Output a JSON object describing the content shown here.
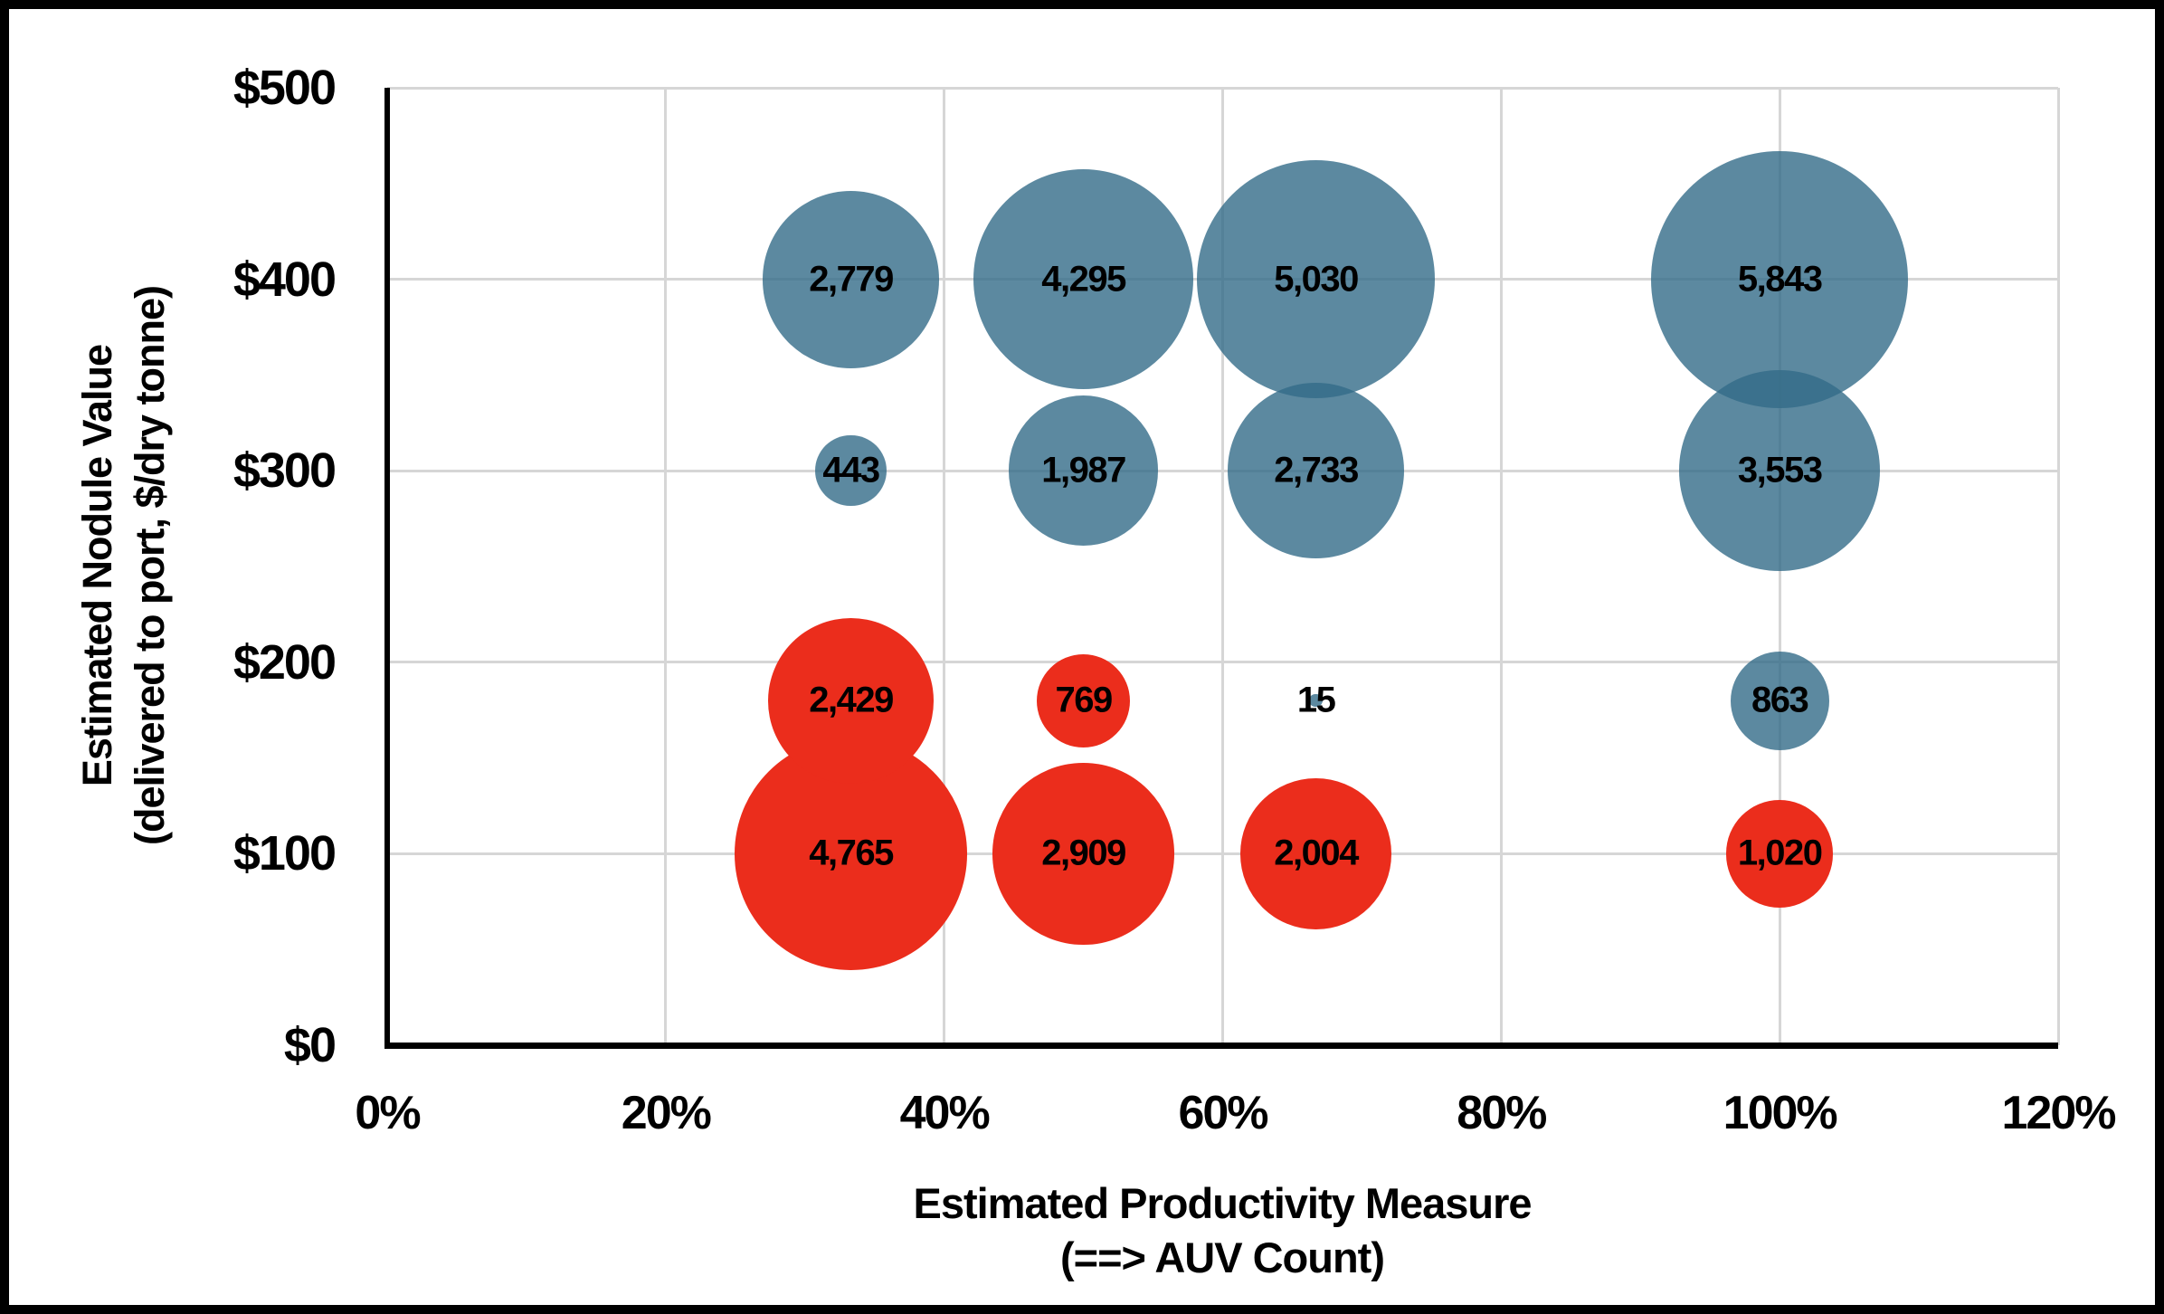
{
  "chart_data": {
    "type": "bubble",
    "title": "",
    "x_axis": {
      "title_line1": "Estimated Productivity Measure",
      "title_line2": "(==> AUV Count)",
      "min": 0,
      "max": 120,
      "unit": "%",
      "ticks": [
        {
          "label": "0%",
          "value": 0
        },
        {
          "label": "20%",
          "value": 20
        },
        {
          "label": "40%",
          "value": 40
        },
        {
          "label": "60%",
          "value": 60
        },
        {
          "label": "80%",
          "value": 80
        },
        {
          "label": "100%",
          "value": 100
        },
        {
          "label": "120%",
          "value": 120
        }
      ]
    },
    "y_axis": {
      "title_line1": "Estimated Nodule Value",
      "title_line2": "(delivered to port, $/dry tonne)",
      "min": 0,
      "max": 500,
      "unit": "$/dry tonne",
      "ticks": [
        {
          "label": "$500",
          "value": 500
        },
        {
          "label": "$400",
          "value": 400
        },
        {
          "label": "$300",
          "value": 300
        },
        {
          "label": "$200",
          "value": 200
        },
        {
          "label": "$100",
          "value": 100
        },
        {
          "label": "$0",
          "value": 0
        }
      ]
    },
    "colors": {
      "blue_fill": "rgba(51,107,136,0.8)",
      "red_fill": "#EB2D1C",
      "gridline": "#D6D6D6",
      "axis": "#000000",
      "label": "#000000",
      "frame": "#000000",
      "background": "#FFFFFF"
    },
    "grid": true,
    "legend": "none",
    "points": [
      {
        "x": 33.3,
        "y": 400,
        "value": 2779,
        "label": "2,779",
        "series": "blue"
      },
      {
        "x": 50,
        "y": 400,
        "value": 4295,
        "label": "4,295",
        "series": "blue"
      },
      {
        "x": 66.7,
        "y": 400,
        "value": 5030,
        "label": "5,030",
        "series": "blue"
      },
      {
        "x": 100,
        "y": 400,
        "value": 5843,
        "label": "5,843",
        "series": "blue"
      },
      {
        "x": 33.3,
        "y": 300,
        "value": 443,
        "label": "443",
        "series": "blue"
      },
      {
        "x": 50,
        "y": 300,
        "value": 1987,
        "label": "1,987",
        "series": "blue"
      },
      {
        "x": 66.7,
        "y": 300,
        "value": 2733,
        "label": "2,733",
        "series": "blue"
      },
      {
        "x": 100,
        "y": 300,
        "value": 3553,
        "label": "3,553",
        "series": "blue"
      },
      {
        "x": 33.3,
        "y": 180,
        "value": 2429,
        "label": "2,429",
        "series": "red"
      },
      {
        "x": 50,
        "y": 180,
        "value": 769,
        "label": "769",
        "series": "red"
      },
      {
        "x": 66.7,
        "y": 180,
        "value": 15,
        "label": "15",
        "series": "blue"
      },
      {
        "x": 100,
        "y": 180,
        "value": 863,
        "label": "863",
        "series": "blue"
      },
      {
        "x": 33.3,
        "y": 100,
        "value": 4765,
        "label": "4,765",
        "series": "red"
      },
      {
        "x": 50,
        "y": 100,
        "value": 2909,
        "label": "2,909",
        "series": "red"
      },
      {
        "x": 66.7,
        "y": 100,
        "value": 2004,
        "label": "2,004",
        "series": "red"
      },
      {
        "x": 100,
        "y": 100,
        "value": 1020,
        "label": "1,020",
        "series": "red"
      }
    ]
  }
}
